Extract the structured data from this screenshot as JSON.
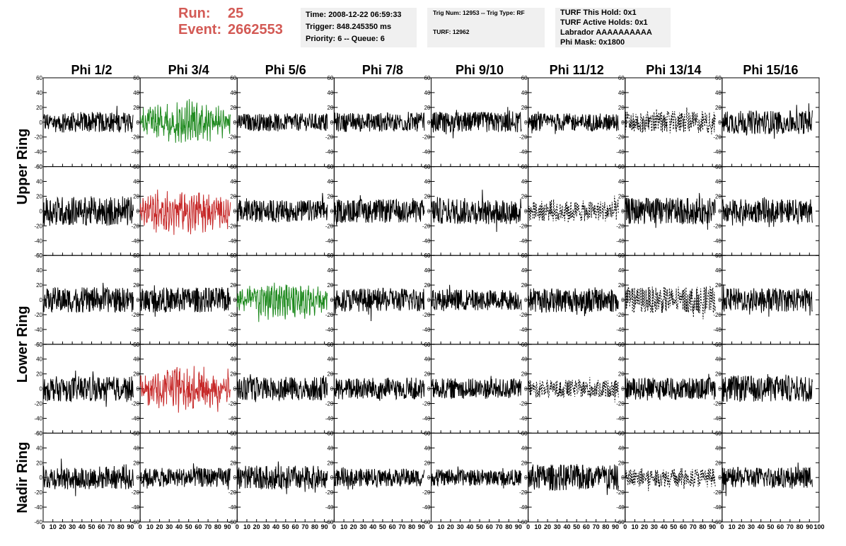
{
  "header": {
    "run_label": "Run:",
    "run_value": "25",
    "event_label": "Event:",
    "event_value": "2662553"
  },
  "info_box_1": {
    "time": "Time: 2008-12-22 06:59:33",
    "trigger": "Trigger: 848.245350 ms",
    "priority": "Priority: 6 -- Queue: 6"
  },
  "info_box_2": {
    "trig": "Trig Num: 12953 -- Trig Type: RF",
    "turf": "TURF: 12962"
  },
  "info_box_3": {
    "this_hold": "TURF This Hold: 0x1",
    "active_holds": "TURF Active Holds: 0x1",
    "labrador": "Labrador AAAAAAAAAA",
    "phi_mask": "Phi Mask: 0x1800"
  },
  "colors": {
    "header_red": "#d35a55",
    "box_bg": "#f0f0f0",
    "trace_black": "#000000",
    "trace_green": "#1f8a1f",
    "trace_red": "#c62828"
  },
  "chart_data": {
    "type": "line",
    "grid": false,
    "columns": [
      "Phi 1/2",
      "Phi 3/4",
      "Phi 5/6",
      "Phi 7/8",
      "Phi 9/10",
      "Phi 11/12",
      "Phi 13/14",
      "Phi 15/16"
    ],
    "row_groups": [
      "Upper Ring",
      "Lower Ring",
      "Nadir Ring"
    ],
    "xlim": [
      0,
      100
    ],
    "ylim": [
      -60,
      60
    ],
    "x_tick_labels": [
      "0",
      "10",
      "20",
      "30",
      "40",
      "50",
      "60",
      "70",
      "80",
      "90",
      "100"
    ],
    "y_tick_labels": [
      "60",
      "40",
      "20",
      "0",
      "-20",
      "-40",
      "-60"
    ],
    "panels": [
      {
        "row": 0,
        "col": 0,
        "color": "black",
        "style": "solid",
        "amp": 14
      },
      {
        "row": 0,
        "col": 1,
        "color": "green",
        "style": "solid",
        "amp": 22
      },
      {
        "row": 0,
        "col": 2,
        "color": "black",
        "style": "solid",
        "amp": 12
      },
      {
        "row": 0,
        "col": 3,
        "color": "black",
        "style": "solid",
        "amp": 13
      },
      {
        "row": 0,
        "col": 4,
        "color": "black",
        "style": "solid",
        "amp": 14
      },
      {
        "row": 0,
        "col": 5,
        "color": "black",
        "style": "solid",
        "amp": 12
      },
      {
        "row": 0,
        "col": 6,
        "color": "black",
        "style": "dashed",
        "amp": 15
      },
      {
        "row": 0,
        "col": 7,
        "color": "black",
        "style": "solid",
        "amp": 16
      },
      {
        "row": 1,
        "col": 0,
        "color": "black",
        "style": "solid",
        "amp": 20
      },
      {
        "row": 1,
        "col": 1,
        "color": "red",
        "style": "solid",
        "amp": 22
      },
      {
        "row": 1,
        "col": 2,
        "color": "black",
        "style": "solid",
        "amp": 15
      },
      {
        "row": 1,
        "col": 3,
        "color": "black",
        "style": "solid",
        "amp": 16
      },
      {
        "row": 1,
        "col": 4,
        "color": "black",
        "style": "solid",
        "amp": 18
      },
      {
        "row": 1,
        "col": 5,
        "color": "black",
        "style": "dashed",
        "amp": 14
      },
      {
        "row": 1,
        "col": 6,
        "color": "black",
        "style": "solid",
        "amp": 18
      },
      {
        "row": 1,
        "col": 7,
        "color": "black",
        "style": "solid",
        "amp": 16
      },
      {
        "row": 2,
        "col": 0,
        "color": "black",
        "style": "solid",
        "amp": 17
      },
      {
        "row": 2,
        "col": 1,
        "color": "black",
        "style": "solid",
        "amp": 17
      },
      {
        "row": 2,
        "col": 2,
        "color": "green",
        "style": "solid",
        "amp": 20
      },
      {
        "row": 2,
        "col": 3,
        "color": "black",
        "style": "solid",
        "amp": 16
      },
      {
        "row": 2,
        "col": 4,
        "color": "black",
        "style": "solid",
        "amp": 14
      },
      {
        "row": 2,
        "col": 5,
        "color": "black",
        "style": "solid",
        "amp": 17
      },
      {
        "row": 2,
        "col": 6,
        "color": "black",
        "style": "dashed",
        "amp": 18
      },
      {
        "row": 2,
        "col": 7,
        "color": "black",
        "style": "solid",
        "amp": 16
      },
      {
        "row": 3,
        "col": 0,
        "color": "black",
        "style": "solid",
        "amp": 17
      },
      {
        "row": 3,
        "col": 1,
        "color": "red",
        "style": "solid",
        "amp": 22
      },
      {
        "row": 3,
        "col": 2,
        "color": "black",
        "style": "solid",
        "amp": 16
      },
      {
        "row": 3,
        "col": 3,
        "color": "black",
        "style": "solid",
        "amp": 15
      },
      {
        "row": 3,
        "col": 4,
        "color": "black",
        "style": "solid",
        "amp": 14
      },
      {
        "row": 3,
        "col": 5,
        "color": "black",
        "style": "dashed",
        "amp": 12
      },
      {
        "row": 3,
        "col": 6,
        "color": "black",
        "style": "solid",
        "amp": 15
      },
      {
        "row": 3,
        "col": 7,
        "color": "black",
        "style": "solid",
        "amp": 18
      },
      {
        "row": 4,
        "col": 0,
        "color": "black",
        "style": "solid",
        "amp": 16
      },
      {
        "row": 4,
        "col": 1,
        "color": "black",
        "style": "solid",
        "amp": 13
      },
      {
        "row": 4,
        "col": 2,
        "color": "black",
        "style": "solid",
        "amp": 16
      },
      {
        "row": 4,
        "col": 3,
        "color": "black",
        "style": "solid",
        "amp": 12
      },
      {
        "row": 4,
        "col": 4,
        "color": "black",
        "style": "solid",
        "amp": 11
      },
      {
        "row": 4,
        "col": 5,
        "color": "black",
        "style": "solid",
        "amp": 18
      },
      {
        "row": 4,
        "col": 6,
        "color": "black",
        "style": "dashed",
        "amp": 13
      },
      {
        "row": 4,
        "col": 7,
        "color": "black",
        "style": "solid",
        "amp": 14
      }
    ]
  }
}
